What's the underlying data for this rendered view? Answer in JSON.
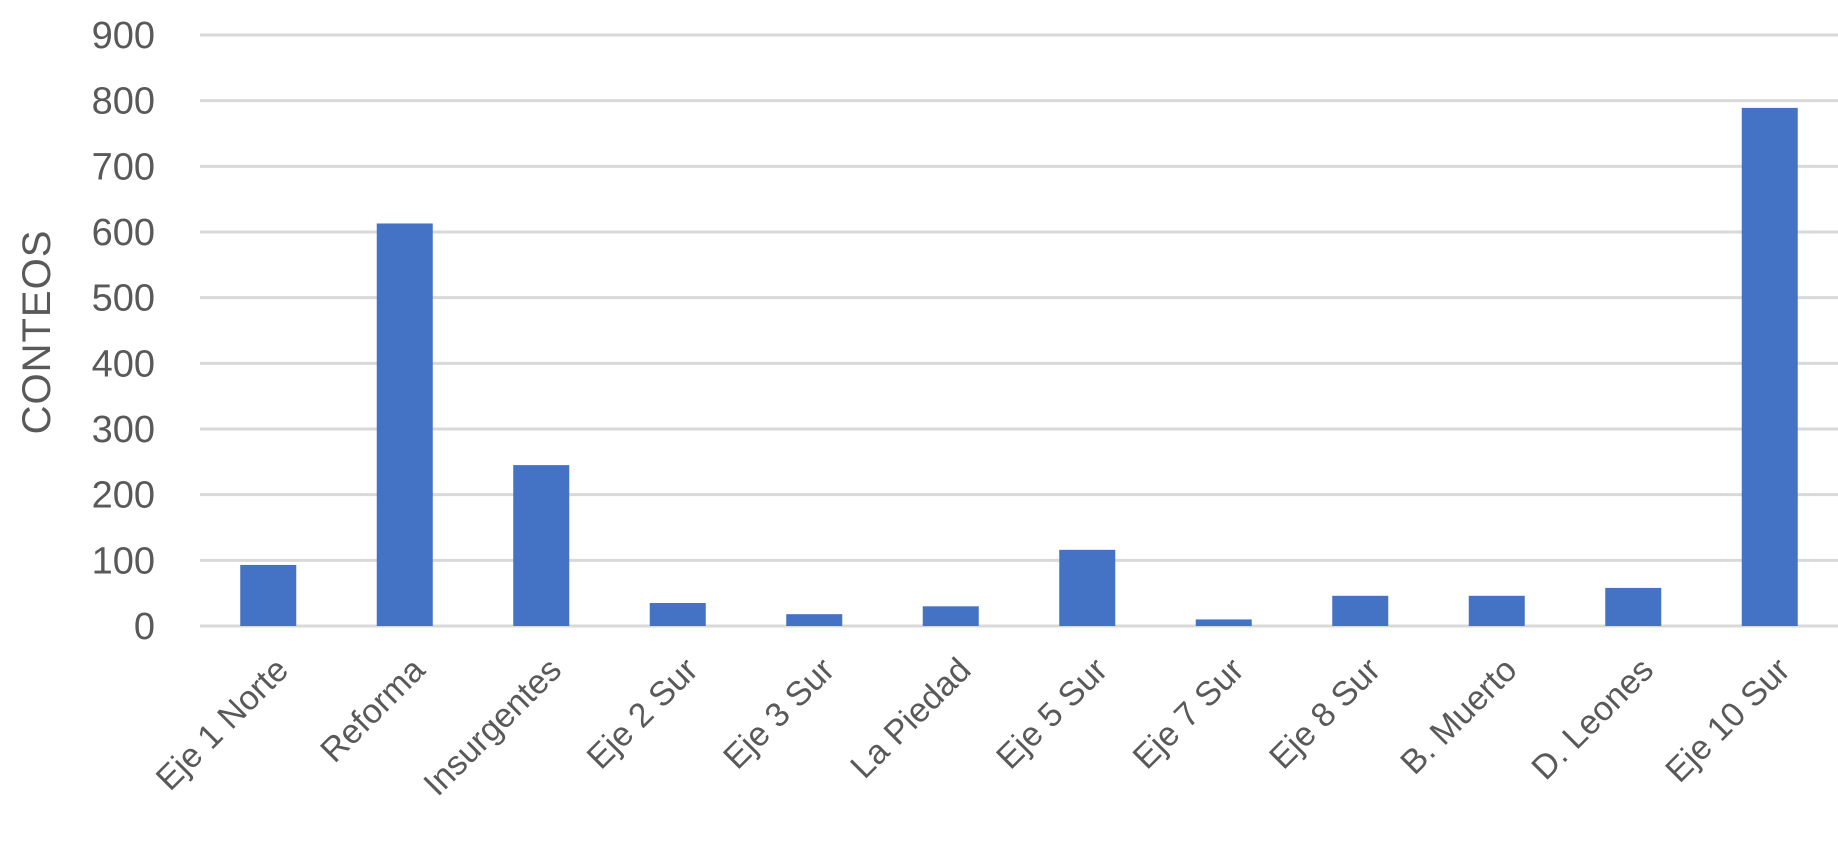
{
  "chart_data": {
    "type": "bar",
    "title": "",
    "xlabel": "",
    "ylabel": "CONTEOS",
    "categories": [
      "Eje 1 Norte",
      "Reforma",
      "Insurgentes",
      "Eje 2 Sur",
      "Eje 3 Sur",
      "La Piedad",
      "Eje 5 Sur",
      "Eje 7 Sur",
      "Eje 8 Sur",
      "B. Muerto",
      "D. Leones",
      "Eje 10 Sur"
    ],
    "values": [
      93,
      613,
      245,
      35,
      18,
      30,
      116,
      10,
      46,
      46,
      58,
      789
    ],
    "ylim": [
      0,
      900
    ],
    "yticks": [
      "0",
      "100",
      "200",
      "300",
      "400",
      "500",
      "600",
      "700",
      "800",
      "900"
    ],
    "grid": true,
    "legend": "none",
    "colors": {
      "bar": "#4472c4",
      "grid": "#d9d9d9",
      "text": "#595959"
    }
  }
}
